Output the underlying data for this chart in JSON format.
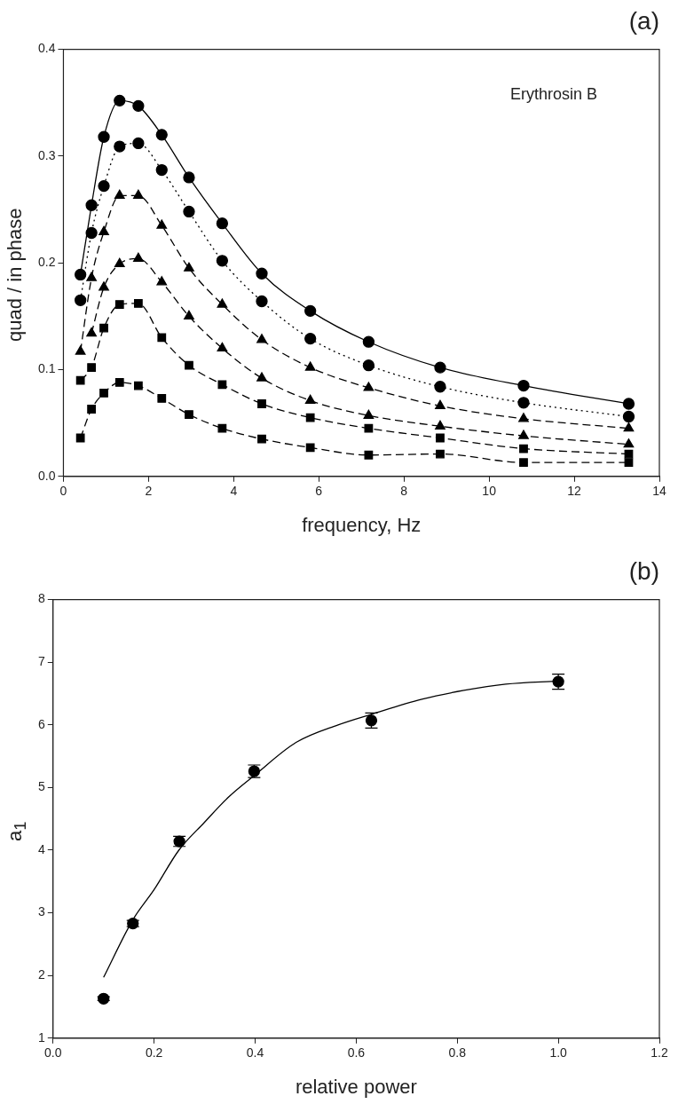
{
  "chart_data": [
    {
      "type": "line",
      "title": "(a)",
      "xlabel": "frequency, Hz",
      "ylabel": "quad / in phase",
      "annotations": [
        "Erythrosin B"
      ],
      "xlim": [
        0,
        14
      ],
      "xticks": [
        0,
        2,
        4,
        6,
        8,
        10,
        12,
        14
      ],
      "ylim": [
        0,
        0.4
      ],
      "yticks": [
        {
          "value": 0,
          "label": "0.0"
        },
        0.1,
        0.2,
        0.3,
        0.4
      ],
      "grid": false,
      "legend": false,
      "x": [
        0.4,
        0.66,
        0.95,
        1.32,
        1.76,
        2.31,
        2.95,
        3.73,
        4.66,
        5.8,
        7.17,
        8.85,
        10.81,
        13.28
      ],
      "series": [
        {
          "color": "#000000",
          "marker": "circle",
          "line_style": "solid",
          "values": [
            0.189,
            0.254,
            0.318,
            0.352,
            0.347,
            0.32,
            0.28,
            0.237,
            0.19,
            0.155,
            0.126,
            0.102,
            0.085,
            0.068
          ]
        },
        {
          "color": "#000000",
          "marker": "circle",
          "line_style": "dotted",
          "values": [
            0.165,
            0.228,
            0.272,
            0.309,
            0.312,
            0.287,
            0.248,
            0.202,
            0.164,
            0.129,
            0.104,
            0.084,
            0.069,
            0.056
          ]
        },
        {
          "color": "#000000",
          "marker": "triangle",
          "line_style": "dashed",
          "values": [
            0.117,
            0.186,
            0.229,
            0.263,
            0.263,
            0.235,
            0.195,
            0.161,
            0.128,
            0.102,
            0.083,
            0.066,
            0.054,
            0.045
          ]
        },
        {
          "color": "#000000",
          "marker": "triangle",
          "line_style": "dashed",
          "values": [
            null,
            0.134,
            0.177,
            0.199,
            0.204,
            0.182,
            0.15,
            0.12,
            0.092,
            0.071,
            0.057,
            0.047,
            0.038,
            0.03
          ]
        },
        {
          "color": "#000000",
          "marker": "square",
          "line_style": "dashed",
          "values": [
            0.09,
            0.102,
            0.139,
            0.161,
            0.162,
            0.13,
            0.104,
            0.086,
            0.068,
            0.055,
            0.045,
            0.036,
            0.026,
            0.021
          ]
        },
        {
          "color": "#000000",
          "marker": "square",
          "line_style": "dashed",
          "values": [
            0.036,
            0.063,
            0.078,
            0.088,
            0.085,
            0.073,
            0.058,
            0.045,
            0.035,
            0.027,
            0.02,
            0.021,
            0.013,
            0.013
          ]
        }
      ]
    },
    {
      "type": "scatter",
      "title": "(b)",
      "xlabel": "relative power",
      "ylabel": "a$_{1}$",
      "xlim": [
        0,
        1.2
      ],
      "xticks": [
        {
          "value": 0,
          "label": "0.0"
        },
        0.2,
        0.4,
        0.6,
        0.8,
        {
          "value": 1,
          "label": "1.0"
        },
        1.2
      ],
      "ylim": [
        1,
        8
      ],
      "yticks": [
        1,
        2,
        3,
        4,
        5,
        6,
        7,
        8
      ],
      "grid": false,
      "legend": false,
      "series": [
        {
          "color": "#000000",
          "marker": "circle",
          "x": [
            0.1,
            0.158,
            0.25,
            0.398,
            0.63,
            1.0
          ],
          "values": [
            1.63,
            2.83,
            4.14,
            5.26,
            6.07,
            6.69
          ],
          "errors": [
            0.03,
            0.05,
            0.08,
            0.1,
            0.12,
            0.12
          ]
        },
        {
          "type": "line",
          "color": "#000000",
          "marker": "none",
          "line_style": "solid",
          "x": [
            0.1,
            0.158,
            0.2,
            0.249,
            0.299,
            0.349,
            0.398,
            0.481,
            0.564,
            0.63,
            0.73,
            0.813,
            0.896,
            1.0
          ],
          "values": [
            1.97,
            2.89,
            3.37,
            4.0,
            4.44,
            4.86,
            5.19,
            5.72,
            6.0,
            6.17,
            6.41,
            6.55,
            6.65,
            6.7
          ]
        }
      ]
    }
  ]
}
